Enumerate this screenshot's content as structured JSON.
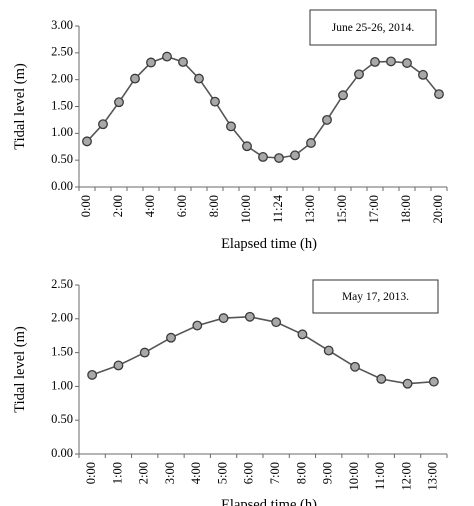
{
  "chart_data": [
    {
      "type": "line",
      "title": "",
      "annotation": "June 25-26, 2014.",
      "xlabel": "Elapsed time (h)",
      "ylabel": "Tidal level (m)",
      "ylim": [
        0,
        3
      ],
      "yticks": [
        "0.00",
        "0.50",
        "1.00",
        "1.50",
        "2.00",
        "2.50",
        "3.00"
      ],
      "categories": [
        "0:00",
        "1:00",
        "2:00",
        "3:00",
        "4:00",
        "5:00",
        "6:00",
        "7:00",
        "8:00",
        "9:00",
        "10:00",
        "11:00",
        "11:24",
        "12:00",
        "13:00",
        "14:00",
        "15:00",
        "16:00",
        "17:00",
        "17:30",
        "18:00",
        "19:00",
        "20:00"
      ],
      "x_tick_labels": [
        "0:00",
        "",
        "2:00",
        "",
        "4:00",
        "",
        "6:00",
        "",
        "8:00",
        "",
        "10:00",
        "",
        "11:24",
        "",
        "13:00",
        "",
        "15:00",
        "",
        "17:00",
        "",
        "18:00",
        "",
        "20:00"
      ],
      "values": [
        0.85,
        1.17,
        1.58,
        2.02,
        2.32,
        2.43,
        2.33,
        2.02,
        1.59,
        1.13,
        0.76,
        0.56,
        0.54,
        0.59,
        0.82,
        1.25,
        1.71,
        2.1,
        2.33,
        2.34,
        2.31,
        2.09,
        1.73
      ],
      "grid": false,
      "legend_placement": "top-right",
      "color": "#555555"
    },
    {
      "type": "line",
      "title": "",
      "annotation": "May 17, 2013.",
      "xlabel": "Elapsed time (h)",
      "ylabel": "Tidal level (m)",
      "ylim": [
        0,
        2.5
      ],
      "yticks": [
        "0.00",
        "0.50",
        "1.00",
        "1.50",
        "2.00",
        "2.50"
      ],
      "categories": [
        "0:00",
        "1:00",
        "2:00",
        "3:00",
        "4:00",
        "5:00",
        "6:00",
        "7:00",
        "8:00",
        "9:00",
        "10:00",
        "11:00",
        "12:00",
        "13:00"
      ],
      "x_tick_labels": [
        "0:00",
        "1:00",
        "2:00",
        "3:00",
        "4:00",
        "5:00",
        "6:00",
        "7:00",
        "8:00",
        "9:00",
        "10:00",
        "11:00",
        "12:00",
        "13:00"
      ],
      "values": [
        1.17,
        1.31,
        1.5,
        1.72,
        1.9,
        2.01,
        2.03,
        1.95,
        1.77,
        1.53,
        1.29,
        1.11,
        1.04,
        1.07
      ],
      "grid": false,
      "legend_placement": "top-right",
      "color": "#555555"
    }
  ]
}
